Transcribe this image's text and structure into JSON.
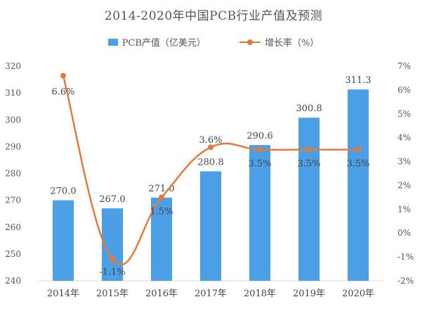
{
  "chart_data": {
    "type": "bar",
    "title": "2014-2020年中国PCB行业产值及预测",
    "categories": [
      "2014年",
      "2015年",
      "2016年",
      "2017年",
      "2018年",
      "2019年",
      "2020年"
    ],
    "series": [
      {
        "name": "PCB产值（亿美元）",
        "type": "bar",
        "axis": "left",
        "values": [
          270.0,
          267.0,
          271.0,
          280.8,
          290.6,
          300.8,
          311.3
        ],
        "labels": [
          "270.0",
          "267.0",
          "271.0",
          "280.8",
          "290.6",
          "300.8",
          "311.3"
        ],
        "color": "#4a9fe6"
      },
      {
        "name": "增长率（%）",
        "type": "line",
        "axis": "right",
        "values": [
          6.6,
          -1.1,
          1.5,
          3.6,
          3.5,
          3.5,
          3.5
        ],
        "labels": [
          "6.6%",
          "-1.1%",
          "1.5%",
          "3.6%",
          "3.5%",
          "3.5%",
          "3.5%"
        ],
        "color": "#e5793b"
      }
    ],
    "ylim_left": [
      240,
      320
    ],
    "yticks_left": [
      "240",
      "250",
      "260",
      "270",
      "280",
      "290",
      "300",
      "310",
      "320"
    ],
    "ylim_right": [
      -2,
      7
    ],
    "yticks_right": [
      "-2%",
      "-1%",
      "0%",
      "1%",
      "2%",
      "3%",
      "4%",
      "5%",
      "6%",
      "7%"
    ],
    "legend_position": "top",
    "grid": false
  }
}
